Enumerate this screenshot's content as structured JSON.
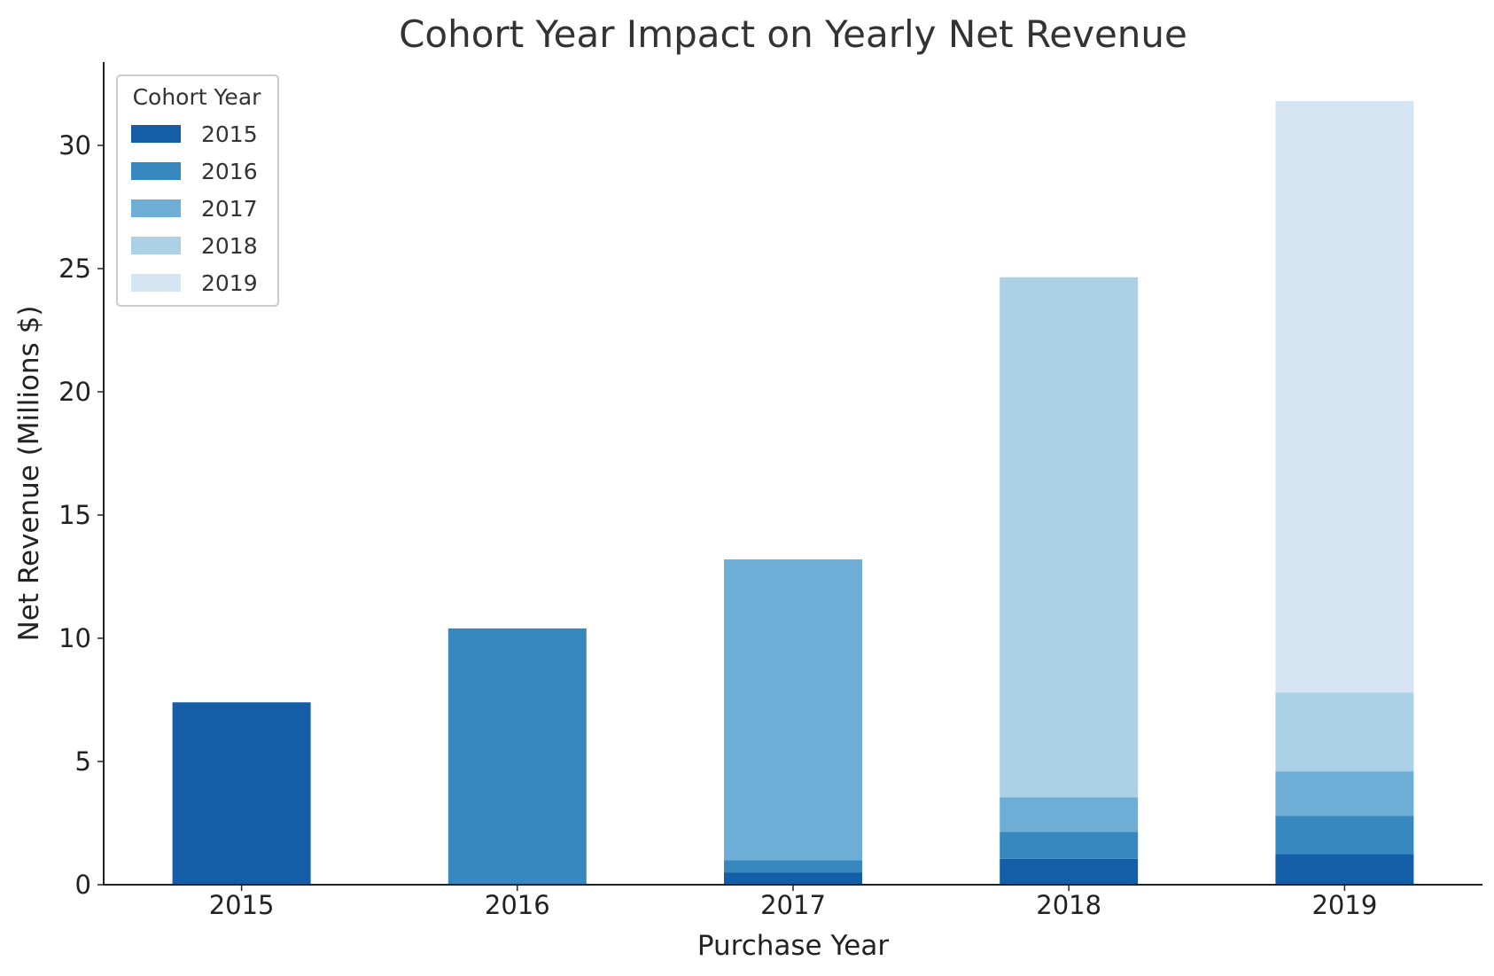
{
  "chart_data": {
    "type": "bar",
    "stacked": true,
    "title": "Cohort Year Impact on Yearly Net Revenue",
    "xlabel": "Purchase Year",
    "ylabel": "Net Revenue (Millions $)",
    "categories": [
      "2015",
      "2016",
      "2017",
      "2018",
      "2019"
    ],
    "ylim": [
      0,
      33.5
    ],
    "yticks": [
      0,
      5,
      10,
      15,
      20,
      25,
      30
    ],
    "grid": false,
    "legend": {
      "title": "Cohort Year",
      "placement": "top-left"
    },
    "series": [
      {
        "name": "2015",
        "color": "#135ea6",
        "values": [
          7.4,
          0.0,
          0.5,
          1.05,
          1.25
        ]
      },
      {
        "name": "2016",
        "color": "#3888c0",
        "values": [
          0.0,
          10.4,
          0.5,
          1.1,
          1.55
        ]
      },
      {
        "name": "2017",
        "color": "#6eaed6",
        "values": [
          0.0,
          0.0,
          12.2,
          1.4,
          1.8
        ]
      },
      {
        "name": "2018",
        "color": "#acd0e5",
        "values": [
          0.0,
          0.0,
          0.0,
          21.1,
          3.2
        ]
      },
      {
        "name": "2019",
        "color": "#d6e5f3",
        "values": [
          0.0,
          0.0,
          0.0,
          0.0,
          24.0
        ]
      }
    ]
  }
}
